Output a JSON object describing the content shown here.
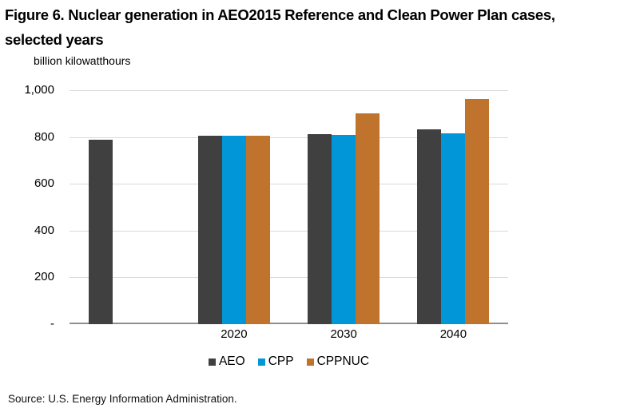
{
  "figure": {
    "title_line1": "Figure 6. Nuclear generation in AEO2015 Reference and Clean Power Plan cases,",
    "title_line2": "selected years",
    "source": "Source: U.S. Energy Information Administration."
  },
  "chart_data": {
    "type": "bar",
    "title": "Figure 6. Nuclear generation in AEO2015 Reference and Clean Power Plan cases, selected years",
    "ylabel": "billion kilowatthours",
    "xlabel": "",
    "categories": [
      "",
      "2020",
      "2030",
      "2040"
    ],
    "series": [
      {
        "name": "AEO",
        "color": "#404041",
        "values": [
          789,
          807,
          811,
          834
        ]
      },
      {
        "name": "CPP",
        "color": "#0096d7",
        "values": [
          null,
          806,
          810,
          816
        ]
      },
      {
        "name": "CPPNUC",
        "color": "#bf732c",
        "values": [
          null,
          806,
          901,
          962
        ]
      }
    ],
    "ylim": [
      0,
      1000
    ],
    "ytick_interval": 200,
    "ytick_labels": [
      "-",
      "200",
      "400",
      "600",
      "800",
      "1,000"
    ],
    "grid": true,
    "legend_position": "bottom",
    "colors": {
      "gridline": "#d9d9d9",
      "axis_line": "#8f8f8f",
      "text": "#000000"
    }
  }
}
